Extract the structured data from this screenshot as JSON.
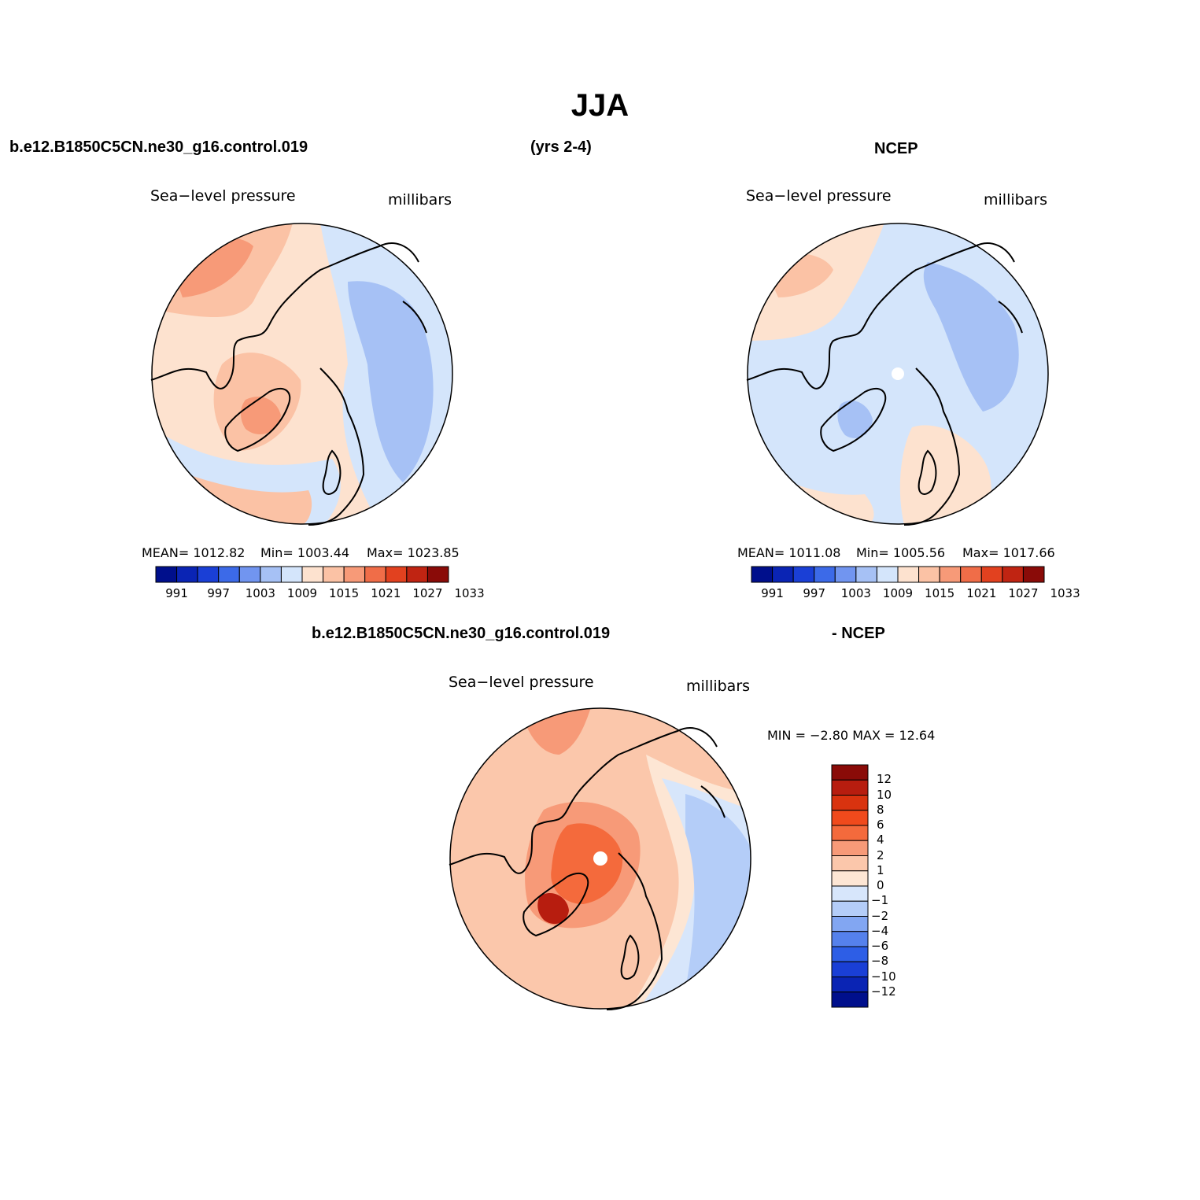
{
  "page": {
    "title": "JJA",
    "case_name": "b.e12.B1850C5CN.ne30_g16.control.019",
    "years": "(yrs 2-4)",
    "obs_name": "NCEP",
    "diff_case_name": "b.e12.B1850C5CN.ne30_g16.control.019",
    "diff_suffix": "- NCEP"
  },
  "panels": {
    "model": {
      "variable": "Sea−level pressure",
      "units": "millibars",
      "mean_text": "MEAN=  1012.82",
      "min_text": "Min=  1003.44",
      "max_text": "Max=  1023.85"
    },
    "obs": {
      "variable": "Sea−level pressure",
      "units": "millibars",
      "mean_text": "MEAN=  1011.08",
      "min_text": "Min=  1005.56",
      "max_text": "Max=  1017.66"
    },
    "diff": {
      "variable": "Sea−level pressure",
      "units": "millibars",
      "minmax_text": "MIN =   −2.80 MAX =   12.64"
    }
  },
  "colorbar_abs": {
    "colors": [
      "#000f8c",
      "#0a24b4",
      "#1a3fd6",
      "#3c6ae8",
      "#7195f0",
      "#a6c1f5",
      "#d4e5fb",
      "#fde2cf",
      "#fbc2a5",
      "#f79a78",
      "#f06d48",
      "#e2411f",
      "#c02412",
      "#8a0b08"
    ],
    "tick_labels": [
      "991",
      "997",
      "1003",
      "1009",
      "1015",
      "1021",
      "1027",
      "1033"
    ]
  },
  "colorbar_diff": {
    "colors": [
      "#8a0b08",
      "#b71d0f",
      "#d9330f",
      "#f04a1c",
      "#f46a3c",
      "#f79a78",
      "#fbc7ab",
      "#fde6d4",
      "#d7e6fb",
      "#b4cdf8",
      "#82a6f2",
      "#5581ec",
      "#2d5ee6",
      "#1a3fd6",
      "#0a24b4",
      "#000f8c"
    ],
    "tick_labels": [
      "12",
      "10",
      "8",
      "6",
      "4",
      "2",
      "1",
      "0",
      "−1",
      "−2",
      "−4",
      "−6",
      "−8",
      "−10",
      "−12"
    ]
  },
  "map_fields": {
    "model": {
      "background": "#fde2cf",
      "regions": [
        {
          "fill": "#fbc2a5",
          "desc": "north pacific high"
        },
        {
          "fill": "#f79a78",
          "desc": "pacific core"
        },
        {
          "fill": "#fbc2a5",
          "desc": "greenland high"
        },
        {
          "fill": "#f79a78",
          "desc": "greenland core"
        },
        {
          "fill": "#d4e5fb",
          "desc": "siberia low"
        },
        {
          "fill": "#a6c1f5",
          "desc": "siberia core"
        },
        {
          "fill": "#d4e5fb",
          "desc": "atlantic low band"
        },
        {
          "fill": "#fbc2a5",
          "desc": "atlantic subtropical high"
        }
      ]
    },
    "obs": {
      "background": "#d4e5fb",
      "regions": [
        {
          "fill": "#fde2cf",
          "desc": "pacific ridge"
        },
        {
          "fill": "#fbc2a5",
          "desc": "pacific core"
        },
        {
          "fill": "#a6c1f5",
          "desc": "siberia low"
        },
        {
          "fill": "#a6c1f5",
          "desc": "greenland low"
        },
        {
          "fill": "#fde2cf",
          "desc": "atlantic subtropical"
        },
        {
          "fill": "#fbc2a5",
          "desc": "atlantic core"
        }
      ]
    },
    "diff": {
      "background": "#fbc7ab",
      "regions": [
        {
          "fill": "#d7e6fb",
          "desc": "eurasia negative"
        },
        {
          "fill": "#b4cdf8",
          "desc": "siberia negative core"
        },
        {
          "fill": "#fde6d4",
          "desc": "transition"
        },
        {
          "fill": "#f79a78",
          "desc": "arctic positive"
        },
        {
          "fill": "#f46a3c",
          "desc": "arctic core"
        },
        {
          "fill": "#f79a78",
          "desc": "pacific positive"
        },
        {
          "fill": "#b71d0f",
          "desc": "greenland max"
        }
      ]
    }
  }
}
